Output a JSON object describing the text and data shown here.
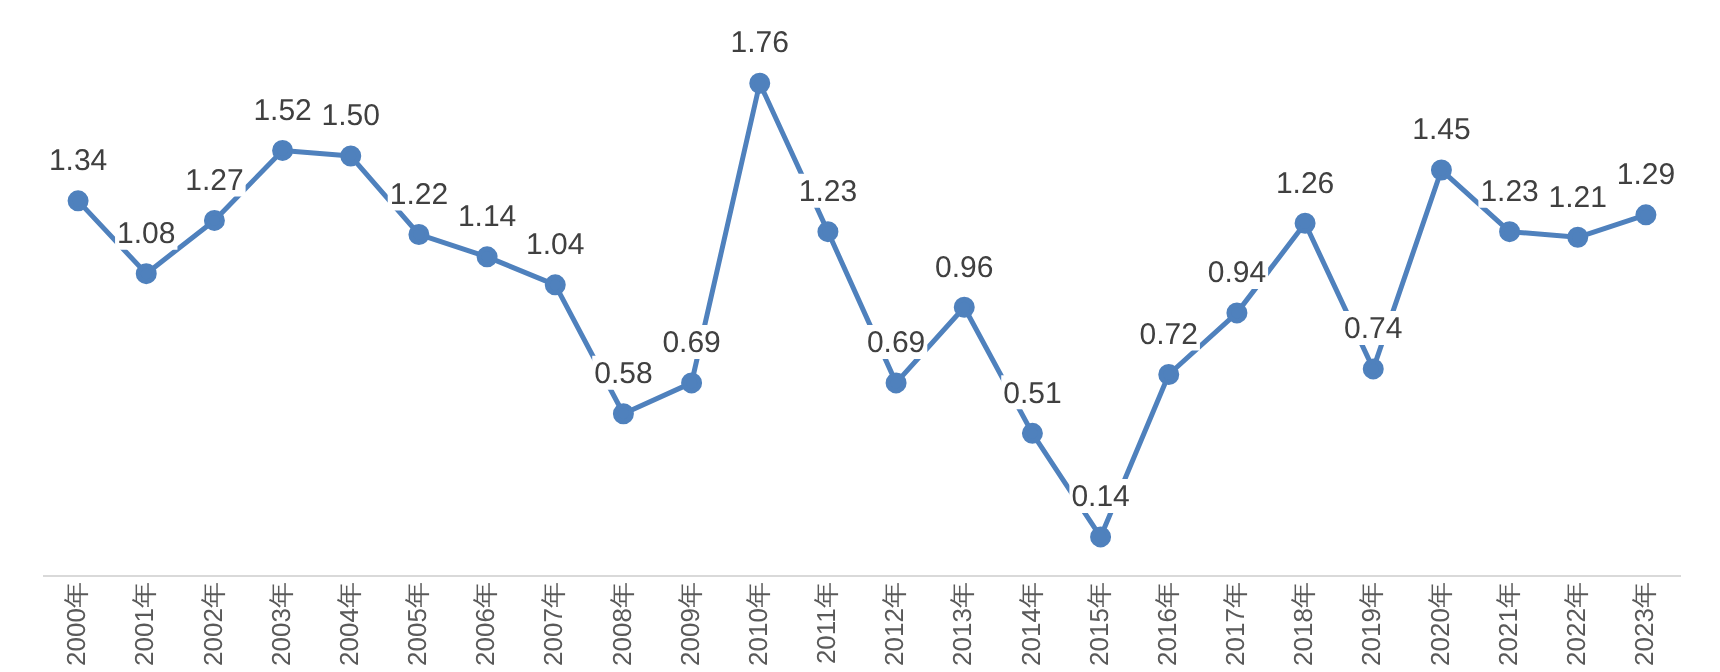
{
  "chart_data": {
    "type": "line",
    "categories": [
      "2000年",
      "2001年",
      "2002年",
      "2003年",
      "2004年",
      "2005年",
      "2006年",
      "2007年",
      "2008年",
      "2009年",
      "2010年",
      "2011年",
      "2012年",
      "2013年",
      "2014年",
      "2015年",
      "2016年",
      "2017年",
      "2018年",
      "2019年",
      "2020年",
      "2021年",
      "2022年",
      "2023年"
    ],
    "series": [
      {
        "color": "#4f81bd",
        "values": [
          1.34,
          1.08,
          1.27,
          1.52,
          1.5,
          1.22,
          1.14,
          1.04,
          0.58,
          0.69,
          1.76,
          1.23,
          0.69,
          0.96,
          0.51,
          0.14,
          0.72,
          0.94,
          1.26,
          0.74,
          1.45,
          1.23,
          1.21,
          1.29
        ],
        "value_labels": [
          "1.34",
          "1.08",
          "1.27",
          "1.52",
          "1.50",
          "1.22",
          "1.14",
          "1.04",
          "0.58",
          "0.69",
          "1.76",
          "1.23",
          "0.69",
          "0.96",
          "0.51",
          "0.14",
          "0.72",
          "0.94",
          "1.26",
          "0.74",
          "1.45",
          "1.23",
          "1.21",
          "1.29"
        ]
      }
    ],
    "grid": false,
    "legend": false,
    "marker": "circle",
    "line_style": "solid",
    "tick_labels": "x"
  }
}
